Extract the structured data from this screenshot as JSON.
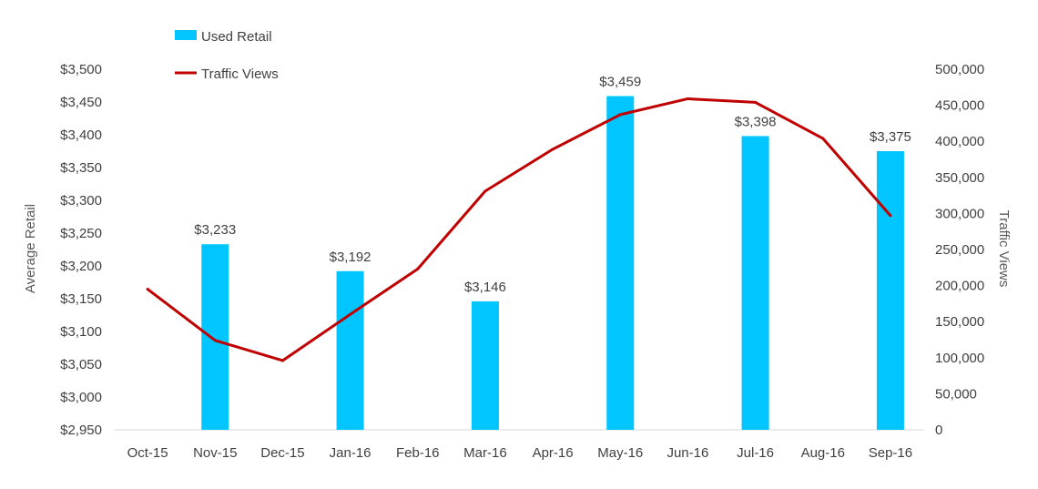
{
  "chart_data": {
    "type": "bar",
    "categories": [
      "Oct-15",
      "Nov-15",
      "Dec-15",
      "Jan-16",
      "Feb-16",
      "Mar-16",
      "Apr-16",
      "May-16",
      "Jun-16",
      "Jul-16",
      "Aug-16",
      "Sep-16"
    ],
    "series": [
      {
        "name": "Used Retail",
        "type": "bar",
        "axis": "left",
        "color": "#00C5FF",
        "values": [
          null,
          3233,
          null,
          3192,
          null,
          3146,
          null,
          3459,
          null,
          3398,
          null,
          3375
        ],
        "labels": [
          null,
          "$3,233",
          null,
          "$3,192",
          null,
          "$3,146",
          null,
          "$3,459",
          null,
          "$3,398",
          null,
          "$3,375"
        ]
      },
      {
        "name": "Traffic Views",
        "type": "line",
        "axis": "right",
        "color": "#C00000",
        "values": [
          195000,
          124000,
          96000,
          160000,
          223000,
          331000,
          389000,
          437000,
          459000,
          454000,
          404000,
          297000
        ]
      }
    ],
    "y_left": {
      "label": "Average Retail",
      "min": 2950,
      "max": 3500,
      "ticks": [
        "$2,950",
        "$3,000",
        "$3,050",
        "$3,100",
        "$3,150",
        "$3,200",
        "$3,250",
        "$3,300",
        "$3,350",
        "$3,400",
        "$3,450",
        "$3,500"
      ],
      "tick_values": [
        2950,
        3000,
        3050,
        3100,
        3150,
        3200,
        3250,
        3300,
        3350,
        3400,
        3450,
        3500
      ]
    },
    "y_right": {
      "label": "Traffic Views",
      "min": 0,
      "max": 500000,
      "ticks": [
        "0",
        "50,000",
        "100,000",
        "150,000",
        "200,000",
        "250,000",
        "300,000",
        "350,000",
        "400,000",
        "450,000",
        "500,000"
      ],
      "tick_values": [
        0,
        50000,
        100000,
        150000,
        200000,
        250000,
        300000,
        350000,
        400000,
        450000,
        500000
      ]
    },
    "grid": false,
    "legend": "top-left"
  }
}
